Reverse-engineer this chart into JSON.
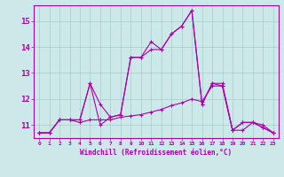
{
  "xlabel": "Windchill (Refroidissement éolien,°C)",
  "bg_color": "#cce8e8",
  "line_color": "#aa00aa",
  "grid_color": "#aacccc",
  "xlim": [
    -0.5,
    23.5
  ],
  "ylim": [
    10.5,
    15.6
  ],
  "yticks": [
    11,
    12,
    13,
    14,
    15
  ],
  "xticks": [
    0,
    1,
    2,
    3,
    4,
    5,
    6,
    7,
    8,
    9,
    10,
    11,
    12,
    13,
    14,
    15,
    16,
    17,
    18,
    19,
    20,
    21,
    22,
    23
  ],
  "x_hours": [
    0,
    1,
    2,
    3,
    4,
    5,
    6,
    7,
    8,
    9,
    10,
    11,
    12,
    13,
    14,
    15,
    16,
    17,
    18,
    19,
    20,
    21,
    22,
    23
  ],
  "line1_y": [
    10.7,
    10.7,
    11.2,
    11.2,
    11.2,
    12.6,
    11.0,
    11.3,
    11.4,
    13.6,
    13.6,
    14.2,
    13.9,
    14.5,
    14.8,
    15.4,
    11.8,
    12.6,
    12.6,
    10.8,
    11.1,
    11.1,
    10.9,
    10.7
  ],
  "line2_y": [
    10.7,
    10.7,
    11.2,
    11.2,
    11.1,
    11.2,
    11.2,
    11.2,
    11.3,
    11.35,
    11.4,
    11.5,
    11.6,
    11.75,
    11.85,
    12.0,
    11.9,
    12.5,
    12.5,
    10.8,
    10.8,
    11.1,
    11.0,
    10.7
  ],
  "line3_y": [
    10.7,
    10.7,
    11.2,
    11.2,
    11.2,
    12.6,
    11.8,
    11.3,
    11.4,
    13.6,
    13.6,
    13.9,
    13.9,
    14.5,
    14.8,
    15.4,
    11.8,
    12.6,
    12.5,
    10.8,
    11.1,
    11.1,
    10.9,
    10.7
  ]
}
